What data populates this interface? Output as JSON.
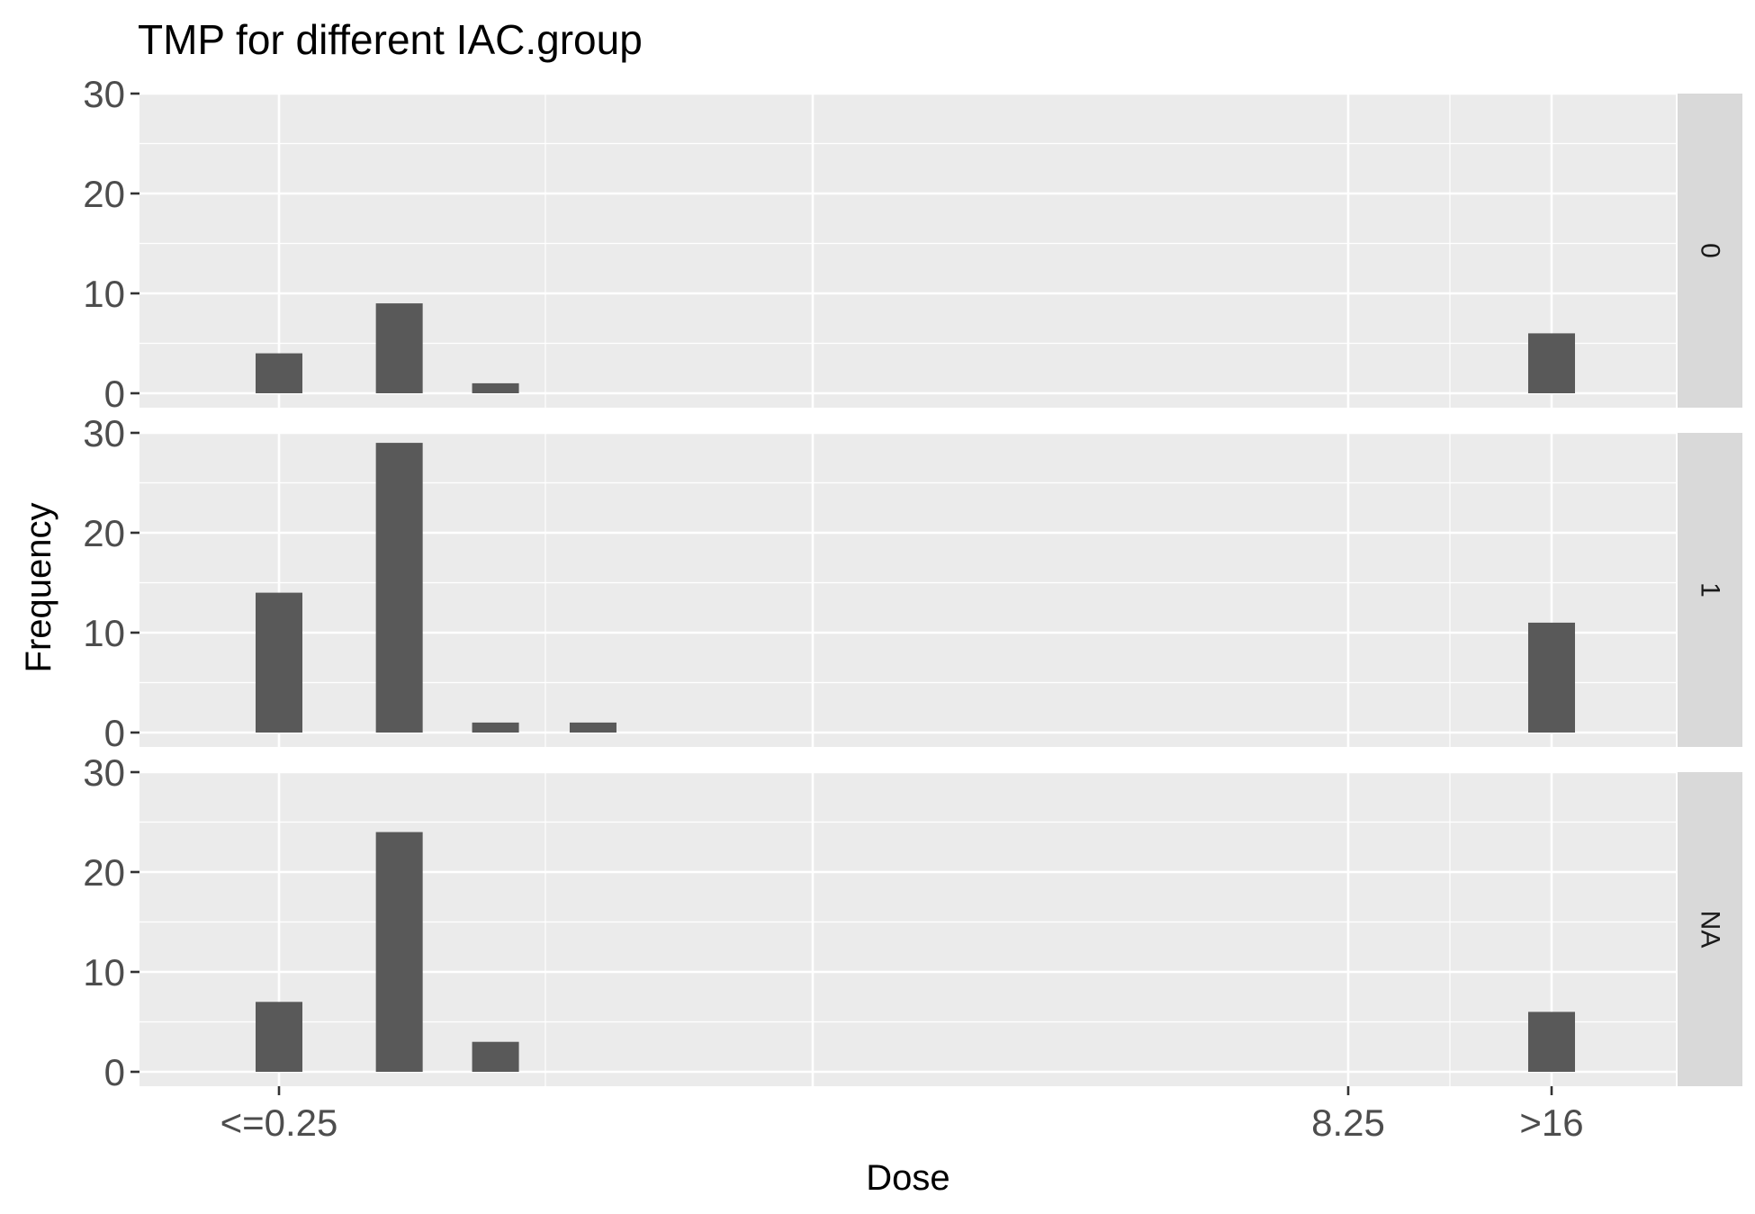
{
  "chart_data": {
    "type": "bar",
    "title": "TMP for different IAC.group",
    "xlabel": "Dose",
    "ylabel": "Frequency",
    "facet_labels": [
      "0",
      "1",
      "NA"
    ],
    "x_tick_labels": [
      "<=0.25",
      "8.25",
      ">16"
    ],
    "y_ticks": [
      0,
      10,
      20,
      30
    ],
    "y_tick_labels": [
      "0",
      "10",
      "20",
      "30"
    ],
    "ylim": [
      0,
      30
    ],
    "bar_x_domain": [
      0.25,
      8.25
    ],
    "grid": true,
    "colors": {
      "bar": "#595959",
      "panel": "#ebebeb",
      "strip": "#d9d9d9",
      "grid": "#ffffff"
    },
    "panels": [
      {
        "facet": "0",
        "bars": [
          {
            "x": 0.25,
            "value": 4
          },
          {
            "x": 1.15,
            "value": 9
          },
          {
            "x": 1.87,
            "value": 1
          },
          {
            "x": 16.25,
            "value": 6
          }
        ]
      },
      {
        "facet": "1",
        "bars": [
          {
            "x": 0.25,
            "value": 14
          },
          {
            "x": 1.15,
            "value": 29
          },
          {
            "x": 1.87,
            "value": 1
          },
          {
            "x": 2.6,
            "value": 1
          },
          {
            "x": 16.25,
            "value": 11
          }
        ]
      },
      {
        "facet": "NA",
        "bars": [
          {
            "x": 0.25,
            "value": 7
          },
          {
            "x": 1.15,
            "value": 24
          },
          {
            "x": 1.87,
            "value": 3
          },
          {
            "x": 16.25,
            "value": 6
          }
        ]
      }
    ]
  }
}
